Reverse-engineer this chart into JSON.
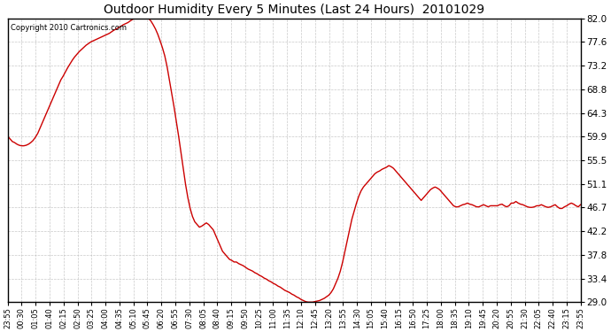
{
  "title": "Outdoor Humidity Every 5 Minutes (Last 24 Hours)  20101029",
  "copyright": "Copyright 2010 Cartronics.com",
  "line_color": "#cc0000",
  "bg_color": "#ffffff",
  "grid_color": "#bbbbbb",
  "ylim": [
    29.0,
    82.0
  ],
  "yticks": [
    29.0,
    33.4,
    37.8,
    42.2,
    46.7,
    51.1,
    55.5,
    59.9,
    64.3,
    68.8,
    73.2,
    77.6,
    82.0
  ],
  "xtick_labels": [
    "23:55",
    "00:30",
    "01:05",
    "01:40",
    "02:15",
    "02:50",
    "03:25",
    "04:00",
    "04:35",
    "05:10",
    "05:45",
    "06:20",
    "06:55",
    "07:30",
    "08:05",
    "08:40",
    "09:15",
    "09:50",
    "10:25",
    "11:00",
    "11:35",
    "12:10",
    "12:45",
    "13:20",
    "13:55",
    "14:30",
    "15:05",
    "15:40",
    "16:15",
    "16:50",
    "17:25",
    "18:00",
    "18:35",
    "19:10",
    "19:45",
    "20:20",
    "20:55",
    "21:30",
    "22:05",
    "22:40",
    "23:15",
    "23:55"
  ],
  "humidity": [
    60.0,
    59.5,
    59.0,
    58.8,
    58.5,
    58.3,
    58.2,
    58.2,
    58.3,
    58.5,
    58.8,
    59.2,
    59.8,
    60.5,
    61.5,
    62.5,
    63.5,
    64.5,
    65.5,
    66.5,
    67.5,
    68.5,
    69.5,
    70.5,
    71.2,
    72.0,
    72.8,
    73.5,
    74.2,
    74.8,
    75.3,
    75.8,
    76.2,
    76.6,
    77.0,
    77.3,
    77.6,
    77.8,
    78.0,
    78.2,
    78.4,
    78.6,
    78.8,
    79.0,
    79.2,
    79.5,
    79.8,
    80.0,
    80.3,
    80.5,
    80.8,
    81.0,
    81.2,
    81.5,
    81.8,
    82.0,
    82.2,
    82.4,
    82.5,
    82.5,
    82.3,
    82.0,
    81.5,
    80.8,
    80.0,
    79.0,
    77.8,
    76.5,
    75.0,
    73.0,
    70.5,
    68.0,
    65.5,
    62.8,
    60.0,
    57.0,
    54.0,
    51.0,
    48.5,
    46.5,
    45.0,
    44.0,
    43.5,
    43.0,
    43.2,
    43.5,
    43.8,
    43.5,
    43.0,
    42.5,
    41.5,
    40.5,
    39.5,
    38.5,
    38.0,
    37.5,
    37.0,
    36.8,
    36.5,
    36.5,
    36.2,
    36.0,
    35.8,
    35.5,
    35.2,
    35.0,
    34.8,
    34.5,
    34.3,
    34.0,
    33.8,
    33.5,
    33.3,
    33.0,
    32.8,
    32.5,
    32.3,
    32.0,
    31.8,
    31.5,
    31.2,
    31.0,
    30.8,
    30.5,
    30.3,
    30.0,
    29.8,
    29.5,
    29.3,
    29.1,
    29.0,
    29.0,
    29.0,
    29.1,
    29.2,
    29.3,
    29.5,
    29.7,
    30.0,
    30.3,
    30.8,
    31.5,
    32.5,
    33.5,
    34.8,
    36.5,
    38.5,
    40.5,
    42.5,
    44.5,
    46.0,
    47.5,
    48.8,
    49.8,
    50.5,
    51.0,
    51.5,
    52.0,
    52.5,
    53.0,
    53.3,
    53.5,
    53.8,
    54.0,
    54.2,
    54.5,
    54.3,
    54.0,
    53.5,
    53.0,
    52.5,
    52.0,
    51.5,
    51.0,
    50.5,
    50.0,
    49.5,
    49.0,
    48.5,
    48.0,
    48.5,
    49.0,
    49.5,
    50.0,
    50.3,
    50.5,
    50.3,
    50.0,
    49.5,
    49.0,
    48.5,
    48.0,
    47.5,
    47.0,
    46.8,
    46.8,
    47.0,
    47.2,
    47.3,
    47.5,
    47.3,
    47.2,
    47.0,
    46.8,
    46.8,
    47.0,
    47.2,
    47.0,
    46.8,
    47.0,
    47.0,
    47.0,
    47.0,
    47.2,
    47.3,
    47.0,
    46.8,
    47.0,
    47.5,
    47.5,
    47.8,
    47.5,
    47.3,
    47.2,
    47.0,
    46.8,
    46.7,
    46.7,
    46.8,
    47.0,
    47.0,
    47.2,
    47.0,
    46.8,
    46.7,
    46.8,
    47.0,
    47.2,
    46.8,
    46.5,
    46.5,
    46.8,
    47.0,
    47.3,
    47.5,
    47.3,
    47.0,
    46.8,
    47.2
  ]
}
